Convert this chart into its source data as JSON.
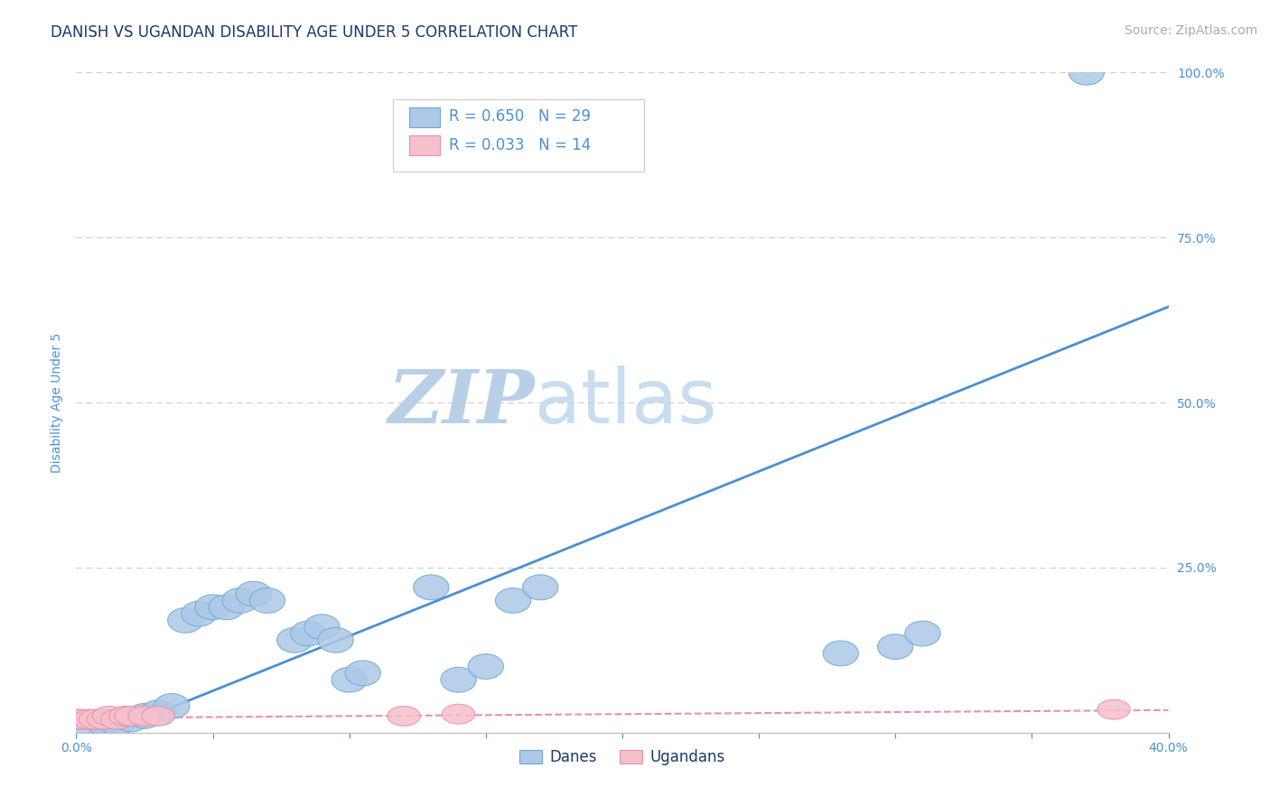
{
  "title": "DANISH VS UGANDAN DISABILITY AGE UNDER 5 CORRELATION CHART",
  "source_text": "Source: ZipAtlas.com",
  "ylabel": "Disability Age Under 5",
  "watermark_zip": "ZIP",
  "watermark_atlas": "atlas",
  "xlim": [
    0.0,
    0.4
  ],
  "ylim": [
    0.0,
    1.0
  ],
  "xticks": [
    0.0,
    0.05,
    0.1,
    0.15,
    0.2,
    0.25,
    0.3,
    0.35,
    0.4
  ],
  "xtick_labels": [
    "0.0%",
    "",
    "",
    "",
    "",
    "",
    "",
    "",
    "40.0%"
  ],
  "yticks": [
    0.0,
    0.25,
    0.5,
    0.75,
    1.0
  ],
  "ytick_labels": [
    "",
    "25.0%",
    "50.0%",
    "75.0%",
    "100.0%"
  ],
  "danes_x": [
    0.005,
    0.01,
    0.015,
    0.02,
    0.025,
    0.03,
    0.035,
    0.04,
    0.045,
    0.05,
    0.055,
    0.06,
    0.065,
    0.07,
    0.08,
    0.085,
    0.09,
    0.095,
    0.1,
    0.105,
    0.13,
    0.14,
    0.15,
    0.16,
    0.17,
    0.28,
    0.3,
    0.31,
    0.37
  ],
  "danes_y": [
    0.01,
    0.015,
    0.015,
    0.02,
    0.025,
    0.03,
    0.04,
    0.17,
    0.18,
    0.19,
    0.19,
    0.2,
    0.21,
    0.2,
    0.14,
    0.15,
    0.16,
    0.14,
    0.08,
    0.09,
    0.22,
    0.08,
    0.1,
    0.2,
    0.22,
    0.12,
    0.13,
    0.15,
    1.0
  ],
  "ugandans_x": [
    0.0,
    0.002,
    0.005,
    0.007,
    0.01,
    0.012,
    0.015,
    0.018,
    0.02,
    0.025,
    0.03,
    0.12,
    0.14,
    0.38
  ],
  "ugandans_y": [
    0.02,
    0.02,
    0.02,
    0.02,
    0.02,
    0.025,
    0.02,
    0.025,
    0.025,
    0.025,
    0.025,
    0.025,
    0.028,
    0.035
  ],
  "danes_line_x0": 0.0,
  "danes_line_y0": -0.02,
  "danes_line_x1": 0.4,
  "danes_line_y1": 0.645,
  "ugandans_line_x0": 0.0,
  "ugandans_line_y0": 0.022,
  "ugandans_line_x1": 0.4,
  "ugandans_line_y1": 0.034,
  "danes_r": 0.65,
  "danes_n": 29,
  "ugandans_r": 0.033,
  "ugandans_n": 14,
  "danes_color": "#adc8e8",
  "danes_edge_color": "#6baad4",
  "ugandans_color": "#f5c0cc",
  "ugandans_edge_color": "#e890a8",
  "danes_line_color": "#4a8fd4",
  "ugandans_line_color": "#e890a8",
  "title_color": "#1a3a6b",
  "tick_color": "#4a90d9",
  "source_color": "#aaaaaa",
  "grid_color": "#cccccc",
  "background_color": "#ffffff",
  "legend_r_color": "#4a90d9",
  "legend_n_color": "#4a90d9",
  "watermark_color_zip": "#b8cfe8",
  "watermark_color_atlas": "#c8ddf0",
  "title_fontsize": 12,
  "axis_label_fontsize": 10,
  "tick_fontsize": 10,
  "source_fontsize": 10,
  "watermark_fontsize": 60,
  "legend_fontsize": 12
}
